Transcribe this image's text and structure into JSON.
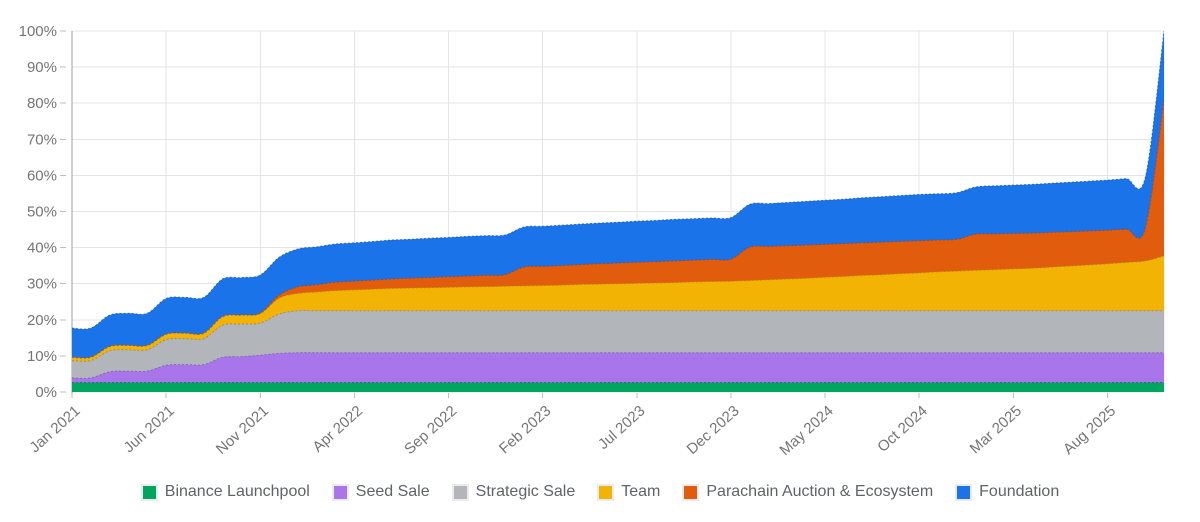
{
  "chart_data": {
    "type": "area",
    "stacked": true,
    "curve": "smooth",
    "grid": true,
    "legend_position": "bottom",
    "unit": "%",
    "y_axis": {
      "min": 0,
      "max": 100,
      "tick_labels": [
        "0%",
        "10%",
        "20%",
        "30%",
        "40%",
        "50%",
        "60%",
        "70%",
        "80%",
        "90%",
        "100%"
      ]
    },
    "x_axis": {
      "tick_labels": [
        "Jan 2021",
        "Jun 2021",
        "Nov 2021",
        "Apr 2022",
        "Sep 2022",
        "Feb 2023",
        "Jul 2023",
        "Dec 2023",
        "May 2024",
        "Oct 2024",
        "Mar 2025",
        "Aug 2025"
      ],
      "tick_indices": [
        0,
        5,
        10,
        15,
        20,
        25,
        30,
        35,
        40,
        45,
        50,
        55
      ]
    },
    "months": [
      "Jan 2021",
      "Feb 2021",
      "Mar 2021",
      "Apr 2021",
      "May 2021",
      "Jun 2021",
      "Jul 2021",
      "Aug 2021",
      "Sep 2021",
      "Oct 2021",
      "Nov 2021",
      "Dec 2021",
      "Jan 2022",
      "Feb 2022",
      "Mar 2022",
      "Apr 2022",
      "May 2022",
      "Jun 2022",
      "Jul 2022",
      "Aug 2022",
      "Sep 2022",
      "Oct 2022",
      "Nov 2022",
      "Dec 2022",
      "Jan 2023",
      "Feb 2023",
      "Mar 2023",
      "Apr 2023",
      "May 2023",
      "Jun 2023",
      "Jul 2023",
      "Aug 2023",
      "Sep 2023",
      "Oct 2023",
      "Nov 2023",
      "Dec 2023",
      "Jan 2024",
      "Feb 2024",
      "Mar 2024",
      "Apr 2024",
      "May 2024",
      "Jun 2024",
      "Jul 2024",
      "Aug 2024",
      "Sep 2024",
      "Oct 2024",
      "Nov 2024",
      "Dec 2024",
      "Jan 2025",
      "Feb 2025",
      "Mar 2025",
      "Apr 2025",
      "May 2025",
      "Jun 2025",
      "Jul 2025",
      "Aug 2025",
      "Sep 2025",
      "Oct 2025",
      "Nov 2025"
    ],
    "series": [
      {
        "name": "Binance Launchpool",
        "color": "#00a55f",
        "values": [
          2.6,
          2.6,
          2.6,
          2.6,
          2.6,
          2.6,
          2.6,
          2.6,
          2.6,
          2.6,
          2.6,
          2.6,
          2.6,
          2.6,
          2.6,
          2.6,
          2.6,
          2.6,
          2.6,
          2.6,
          2.6,
          2.6,
          2.6,
          2.6,
          2.6,
          2.6,
          2.6,
          2.6,
          2.6,
          2.6,
          2.6,
          2.6,
          2.6,
          2.6,
          2.6,
          2.6,
          2.6,
          2.6,
          2.6,
          2.6,
          2.6,
          2.6,
          2.6,
          2.6,
          2.6,
          2.6,
          2.6,
          2.6,
          2.6,
          2.6,
          2.6,
          2.6,
          2.6,
          2.6,
          2.6,
          2.6,
          2.6,
          2.6,
          2.6
        ]
      },
      {
        "name": "Seed Sale",
        "color": "#a876ea",
        "values": [
          1.3,
          1.3,
          3.0,
          3.2,
          3.2,
          4.8,
          5.0,
          5.0,
          7.0,
          7.2,
          7.6,
          8.1,
          8.3,
          8.3,
          8.3,
          8.3,
          8.3,
          8.3,
          8.3,
          8.3,
          8.3,
          8.3,
          8.3,
          8.3,
          8.3,
          8.3,
          8.3,
          8.3,
          8.3,
          8.3,
          8.3,
          8.3,
          8.3,
          8.3,
          8.3,
          8.3,
          8.3,
          8.3,
          8.3,
          8.3,
          8.3,
          8.3,
          8.3,
          8.3,
          8.3,
          8.3,
          8.3,
          8.3,
          8.3,
          8.3,
          8.3,
          8.3,
          8.3,
          8.3,
          8.3,
          8.3,
          8.3,
          8.3,
          8.3
        ]
      },
      {
        "name": "Strategic Sale",
        "color": "#b2b6ba",
        "values": [
          4.8,
          4.8,
          5.8,
          5.9,
          5.9,
          7.1,
          7.2,
          7.2,
          8.9,
          9.0,
          8.9,
          10.9,
          11.6,
          11.6,
          11.6,
          11.6,
          11.6,
          11.6,
          11.6,
          11.6,
          11.6,
          11.6,
          11.6,
          11.6,
          11.6,
          11.6,
          11.6,
          11.6,
          11.6,
          11.6,
          11.6,
          11.6,
          11.6,
          11.6,
          11.6,
          11.6,
          11.6,
          11.6,
          11.6,
          11.6,
          11.6,
          11.6,
          11.6,
          11.6,
          11.6,
          11.6,
          11.6,
          11.6,
          11.6,
          11.6,
          11.6,
          11.6,
          11.6,
          11.6,
          11.6,
          11.6,
          11.6,
          11.6,
          11.6
        ]
      },
      {
        "name": "Team",
        "color": "#f2b305",
        "values": [
          0.9,
          0.9,
          1.2,
          1.2,
          1.2,
          1.5,
          1.5,
          1.5,
          2.4,
          2.5,
          2.6,
          4.4,
          4.8,
          5.2,
          5.6,
          5.8,
          6.0,
          6.2,
          6.3,
          6.4,
          6.5,
          6.6,
          6.7,
          6.8,
          6.9,
          7.0,
          7.1,
          7.3,
          7.4,
          7.5,
          7.6,
          7.7,
          7.8,
          8.0,
          8.1,
          8.2,
          8.4,
          8.6,
          8.8,
          9.0,
          9.3,
          9.5,
          9.8,
          10.0,
          10.3,
          10.5,
          10.8,
          11.0,
          11.2,
          11.4,
          11.6,
          11.8,
          12.1,
          12.4,
          12.7,
          13.0,
          13.4,
          13.8,
          15.2
        ]
      },
      {
        "name": "Parachain Auction & Ecosystem",
        "color": "#e25c0d",
        "values": [
          0,
          0,
          0,
          0,
          0,
          0,
          0,
          0,
          0,
          0,
          0.2,
          0.8,
          1.8,
          2.0,
          2.3,
          2.4,
          2.5,
          2.6,
          2.7,
          2.8,
          2.9,
          3.0,
          3.1,
          3.2,
          5.2,
          5.3,
          5.4,
          5.5,
          5.6,
          5.7,
          5.8,
          5.9,
          6.0,
          6.0,
          6.1,
          6.1,
          9.2,
          9.2,
          9.2,
          9.2,
          9.1,
          9.1,
          9.0,
          9.0,
          8.9,
          8.9,
          8.8,
          8.8,
          10.0,
          9.9,
          9.8,
          9.7,
          9.6,
          9.5,
          9.4,
          9.3,
          9.2,
          8.9,
          43.1
        ]
      },
      {
        "name": "Foundation",
        "color": "#1a73e8",
        "values": [
          8.1,
          8.1,
          8.7,
          8.9,
          8.9,
          9.9,
          9.9,
          9.9,
          10.4,
          10.4,
          10.5,
          10.5,
          10.5,
          10.5,
          10.6,
          10.6,
          10.7,
          10.8,
          10.8,
          10.9,
          10.9,
          11.0,
          11.0,
          11.0,
          11.1,
          11.1,
          11.2,
          11.2,
          11.3,
          11.3,
          11.4,
          11.4,
          11.5,
          11.5,
          11.5,
          11.5,
          11.9,
          11.9,
          12.0,
          12.1,
          12.2,
          12.3,
          12.5,
          12.6,
          12.7,
          12.8,
          12.8,
          12.9,
          13.1,
          13.3,
          13.4,
          13.5,
          13.6,
          13.7,
          13.8,
          13.9,
          14.0,
          14.1,
          19.2
        ]
      }
    ]
  },
  "style_colors": {
    "grid": "#e4e4e4",
    "axis_line": "#9aa0a6",
    "axis_text": "#757575",
    "legend_text": "#5f6368",
    "background": "#ffffff"
  }
}
